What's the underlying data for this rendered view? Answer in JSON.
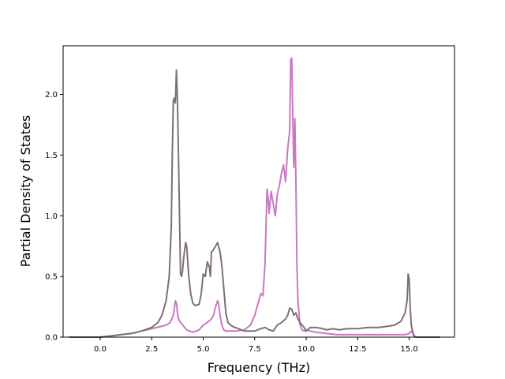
{
  "chart_data": {
    "type": "line",
    "title": "",
    "xlabel": "Frequency (THz)",
    "ylabel": "Partial Density of States",
    "xlim": [
      -1.8,
      17.2
    ],
    "ylim": [
      0.0,
      2.4
    ],
    "xticks": [
      0.0,
      2.5,
      5.0,
      7.5,
      10.0,
      12.5,
      15.0
    ],
    "xtick_labels": [
      "0.0",
      "2.5",
      "5.0",
      "7.5",
      "10.0",
      "12.5",
      "15.0"
    ],
    "yticks": [
      0.0,
      0.5,
      1.0,
      1.5,
      2.0
    ],
    "ytick_labels": [
      "0.0",
      "0.5",
      "1.0",
      "1.5",
      "2.0"
    ],
    "grid": false,
    "legend": "none",
    "series": [
      {
        "color": "#c879bf",
        "x": [
          -1.5,
          0.0,
          0.5,
          1.0,
          1.5,
          2.0,
          2.5,
          3.0,
          3.2,
          3.4,
          3.55,
          3.65,
          3.7,
          3.75,
          3.8,
          3.9,
          4.0,
          4.2,
          4.5,
          4.8,
          5.0,
          5.2,
          5.4,
          5.5,
          5.6,
          5.7,
          5.75,
          5.8,
          5.9,
          6.0,
          6.1,
          6.3,
          6.6,
          7.0,
          7.3,
          7.5,
          7.7,
          7.8,
          7.9,
          8.0,
          8.1,
          8.15,
          8.2,
          8.3,
          8.4,
          8.5,
          8.6,
          8.7,
          8.8,
          8.9,
          9.0,
          9.1,
          9.2,
          9.25,
          9.3,
          9.35,
          9.4,
          9.45,
          9.5,
          9.55,
          9.6,
          9.7,
          9.8,
          9.9,
          10.0,
          10.2,
          10.5,
          11.0,
          11.5,
          12.0,
          12.5,
          13.0,
          13.5,
          14.0,
          14.5,
          14.8,
          15.0,
          15.1,
          15.3,
          16.5
        ],
        "y": [
          0.0,
          0.0,
          0.01,
          0.02,
          0.03,
          0.05,
          0.07,
          0.09,
          0.1,
          0.12,
          0.18,
          0.3,
          0.28,
          0.2,
          0.15,
          0.12,
          0.1,
          0.06,
          0.04,
          0.06,
          0.1,
          0.12,
          0.15,
          0.18,
          0.25,
          0.3,
          0.28,
          0.2,
          0.1,
          0.06,
          0.05,
          0.05,
          0.05,
          0.06,
          0.1,
          0.18,
          0.3,
          0.36,
          0.34,
          0.6,
          1.22,
          1.15,
          1.02,
          1.2,
          1.1,
          1.0,
          1.18,
          1.25,
          1.35,
          1.42,
          1.28,
          1.55,
          1.7,
          2.28,
          2.3,
          1.8,
          1.4,
          1.8,
          1.3,
          0.6,
          0.3,
          0.1,
          0.06,
          0.05,
          0.06,
          0.05,
          0.04,
          0.03,
          0.02,
          0.02,
          0.02,
          0.02,
          0.02,
          0.02,
          0.02,
          0.02,
          0.03,
          0.05,
          0.0,
          0.0
        ]
      },
      {
        "color": "#7f7170",
        "x": [
          -1.5,
          0.0,
          0.5,
          1.0,
          1.5,
          2.0,
          2.5,
          2.8,
          3.0,
          3.2,
          3.35,
          3.45,
          3.5,
          3.55,
          3.6,
          3.65,
          3.7,
          3.75,
          3.8,
          3.85,
          3.9,
          3.95,
          4.0,
          4.05,
          4.1,
          4.15,
          4.2,
          4.3,
          4.4,
          4.5,
          4.6,
          4.8,
          4.9,
          5.0,
          5.1,
          5.2,
          5.3,
          5.35,
          5.4,
          5.5,
          5.6,
          5.7,
          5.75,
          5.8,
          5.9,
          6.0,
          6.1,
          6.2,
          6.4,
          6.7,
          7.0,
          7.2,
          7.5,
          7.8,
          8.0,
          8.2,
          8.4,
          8.6,
          8.8,
          9.0,
          9.1,
          9.2,
          9.3,
          9.4,
          9.5,
          9.6,
          9.7,
          9.8,
          9.9,
          10.0,
          10.2,
          10.5,
          10.8,
          11.0,
          11.3,
          11.6,
          12.0,
          12.5,
          13.0,
          13.5,
          14.0,
          14.3,
          14.6,
          14.8,
          14.9,
          14.95,
          15.0,
          15.05,
          15.1,
          15.2,
          15.3,
          16.5
        ],
        "y": [
          0.0,
          0.0,
          0.01,
          0.02,
          0.03,
          0.05,
          0.08,
          0.12,
          0.18,
          0.3,
          0.5,
          0.9,
          1.5,
          1.95,
          1.97,
          1.93,
          2.2,
          1.95,
          1.5,
          1.0,
          0.52,
          0.5,
          0.55,
          0.65,
          0.72,
          0.78,
          0.75,
          0.5,
          0.35,
          0.28,
          0.26,
          0.27,
          0.35,
          0.52,
          0.5,
          0.62,
          0.58,
          0.5,
          0.7,
          0.72,
          0.75,
          0.78,
          0.74,
          0.72,
          0.6,
          0.4,
          0.2,
          0.12,
          0.09,
          0.07,
          0.05,
          0.05,
          0.05,
          0.07,
          0.08,
          0.06,
          0.05,
          0.1,
          0.12,
          0.15,
          0.18,
          0.24,
          0.23,
          0.18,
          0.2,
          0.15,
          0.12,
          0.1,
          0.08,
          0.05,
          0.08,
          0.08,
          0.07,
          0.06,
          0.07,
          0.06,
          0.07,
          0.07,
          0.08,
          0.08,
          0.09,
          0.1,
          0.13,
          0.2,
          0.3,
          0.52,
          0.48,
          0.25,
          0.1,
          0.02,
          0.0,
          0.0
        ]
      }
    ]
  }
}
